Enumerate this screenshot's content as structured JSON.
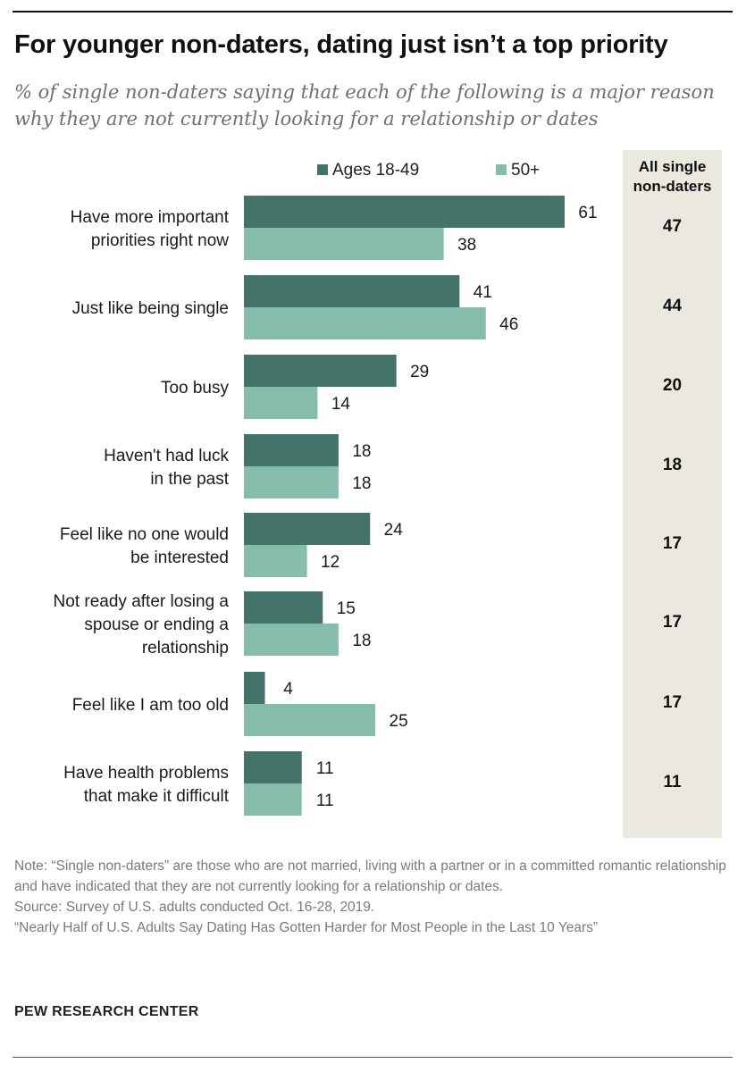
{
  "title": "For younger non-daters, dating just isn’t a top priority",
  "subtitle": "% of single non-daters saying that each of the following is a major reason why they are not currently looking for a relationship or dates",
  "legend": [
    "Ages 18-49",
    "50+"
  ],
  "all_column_header": [
    "All single",
    "non-daters"
  ],
  "colors": {
    "young": "#44736a",
    "old": "#86bcab",
    "all_bg": "#ebe8e0"
  },
  "chart_data": {
    "type": "bar",
    "orientation": "horizontal",
    "title": "For younger non-daters, dating just isn’t a top priority",
    "categories": [
      [
        "Have more important",
        "priorities right now"
      ],
      [
        "Just like being single"
      ],
      [
        "Too busy"
      ],
      [
        "Haven't had luck",
        "in the past"
      ],
      [
        "Feel like no one would",
        "be interested"
      ],
      [
        "Not ready after losing a",
        "spouse or ending a",
        "relationship"
      ],
      [
        "Feel like I am too old"
      ],
      [
        "Have health problems",
        "that make it difficult"
      ]
    ],
    "series": [
      {
        "name": "Ages 18-49",
        "values": [
          61,
          41,
          29,
          18,
          24,
          15,
          4,
          11
        ]
      },
      {
        "name": "50+",
        "values": [
          38,
          46,
          14,
          18,
          12,
          18,
          25,
          11
        ]
      }
    ],
    "all_single_non_daters": [
      47,
      44,
      20,
      18,
      17,
      17,
      17,
      11
    ],
    "xlim": [
      0,
      61
    ],
    "grid": false,
    "legend_position": "top"
  },
  "notes": [
    "Note: “Single non-daters” are those who are not married, living with a partner or in a committed romantic relationship and have indicated that they are not currently looking for a relationship or dates.",
    "Source: Survey of U.S. adults conducted Oct. 16-28, 2019.",
    "“Nearly Half of U.S. Adults Say Dating Has Gotten Harder for Most People in the Last 10 Years”"
  ],
  "brand": "PEW RESEARCH CENTER"
}
